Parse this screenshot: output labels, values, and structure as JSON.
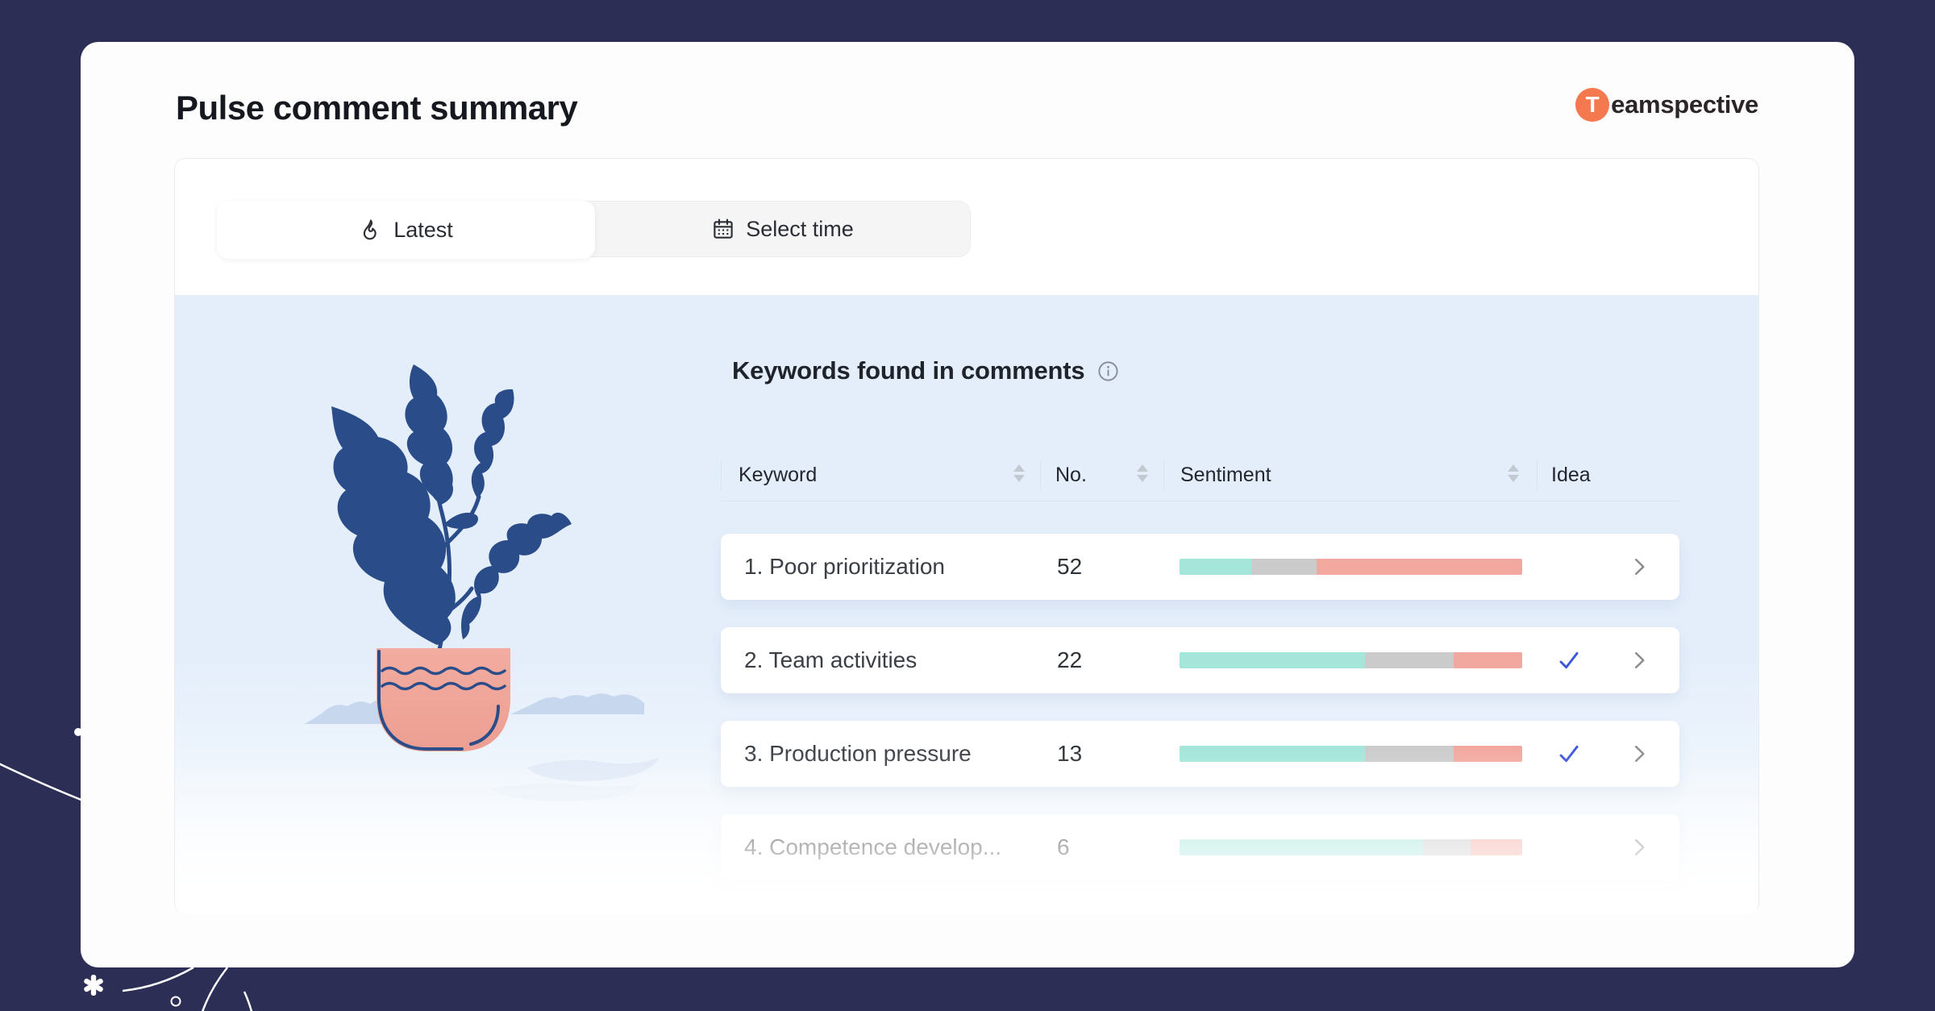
{
  "window": {
    "title": "Pulse comment summary"
  },
  "brand": {
    "initial": "T",
    "rest": "eamspective"
  },
  "toolbar": {
    "tabs": [
      {
        "label": "Latest",
        "icon": "flame-icon",
        "active": true
      },
      {
        "label": "Select time",
        "icon": "calendar-icon",
        "active": false
      }
    ]
  },
  "keywords_section": {
    "heading": "Keywords found in comments",
    "info_icon": "info-circle-icon",
    "table": {
      "headers": [
        {
          "label": "Keyword",
          "sortable": true
        },
        {
          "label": "No.",
          "sortable": true
        },
        {
          "label": "Sentiment",
          "sortable": true
        },
        {
          "label": "Idea",
          "sortable": false
        }
      ],
      "rows": [
        {
          "keyword": "1. Poor prioritization",
          "count": "52",
          "sentiment": {
            "positive": 21,
            "neutral": 19,
            "negative": 60
          },
          "idea": false
        },
        {
          "keyword": "2. Team activities",
          "count": "22",
          "sentiment": {
            "positive": 54,
            "neutral": 26,
            "negative": 20
          },
          "idea": true
        },
        {
          "keyword": "3. Production pressure",
          "count": "13",
          "sentiment": {
            "positive": 54,
            "neutral": 26,
            "negative": 20
          },
          "idea": true
        },
        {
          "keyword": "4. Competence develop...",
          "count": "6",
          "sentiment": {
            "positive": 71,
            "neutral": 14,
            "negative": 15
          },
          "idea": false
        }
      ]
    }
  },
  "colors": {
    "background_dark": "#2D2E55",
    "panel_blue": "#E4EEFB",
    "sentiment_positive": "#A5E6DA",
    "sentiment_neutral": "#CBCBCB",
    "sentiment_negative": "#F2A89F",
    "idea_check_blue": "#3D55DB",
    "brand_orange": "#F4794F",
    "plant_navy": "#2A4D8A",
    "pot_salmon": "#F0A89C"
  }
}
